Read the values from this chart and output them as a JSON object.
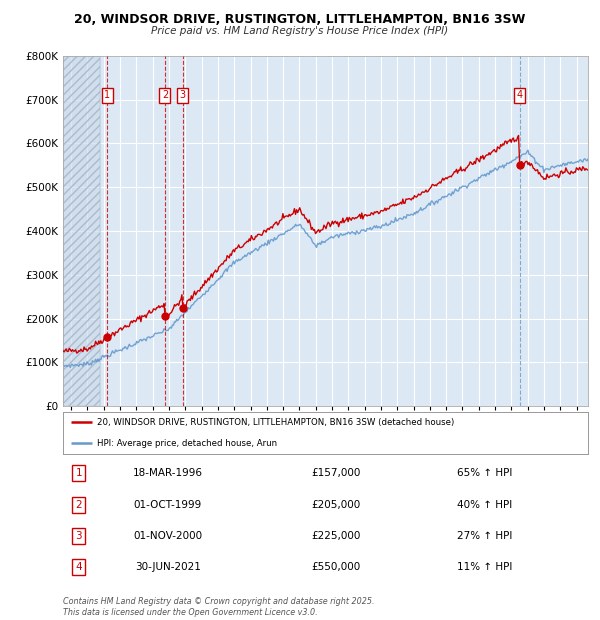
{
  "title": "20, WINDSOR DRIVE, RUSTINGTON, LITTLEHAMPTON, BN16 3SW",
  "subtitle": "Price paid vs. HM Land Registry's House Price Index (HPI)",
  "ylim": [
    0,
    800000
  ],
  "yticks": [
    0,
    100000,
    200000,
    300000,
    400000,
    500000,
    600000,
    700000,
    800000
  ],
  "xlim_start": 1993.5,
  "xlim_end": 2025.7,
  "background_color": "#ffffff",
  "plot_bg_color": "#dce9f5",
  "grid_color": "#ffffff",
  "sale_color": "#cc0000",
  "hpi_color": "#6699cc",
  "legend_sale_label": "20, WINDSOR DRIVE, RUSTINGTON, LITTLEHAMPTON, BN16 3SW (detached house)",
  "legend_hpi_label": "HPI: Average price, detached house, Arun",
  "sale_points": [
    {
      "num": 1,
      "year": 1996.21,
      "price": 157000,
      "date": "18-MAR-1996",
      "pct": "65%"
    },
    {
      "num": 2,
      "year": 1999.75,
      "price": 205000,
      "date": "01-OCT-1999",
      "pct": "40%"
    },
    {
      "num": 3,
      "year": 2000.84,
      "price": 225000,
      "date": "01-NOV-2000",
      "pct": "27%"
    },
    {
      "num": 4,
      "year": 2021.5,
      "price": 550000,
      "date": "30-JUN-2021",
      "pct": "11%"
    }
  ],
  "footer": "Contains HM Land Registry data © Crown copyright and database right 2025.\nThis data is licensed under the Open Government Licence v3.0.",
  "table_rows": [
    {
      "num": 1,
      "date": "18-MAR-1996",
      "price": "£157,000",
      "pct": "65% ↑ HPI"
    },
    {
      "num": 2,
      "date": "01-OCT-1999",
      "price": "£205,000",
      "pct": "40% ↑ HPI"
    },
    {
      "num": 3,
      "date": "01-NOV-2000",
      "price": "£225,000",
      "pct": "27% ↑ HPI"
    },
    {
      "num": 4,
      "date": "30-JUN-2021",
      "price": "£550,000",
      "pct": "11% ↑ HPI"
    }
  ]
}
